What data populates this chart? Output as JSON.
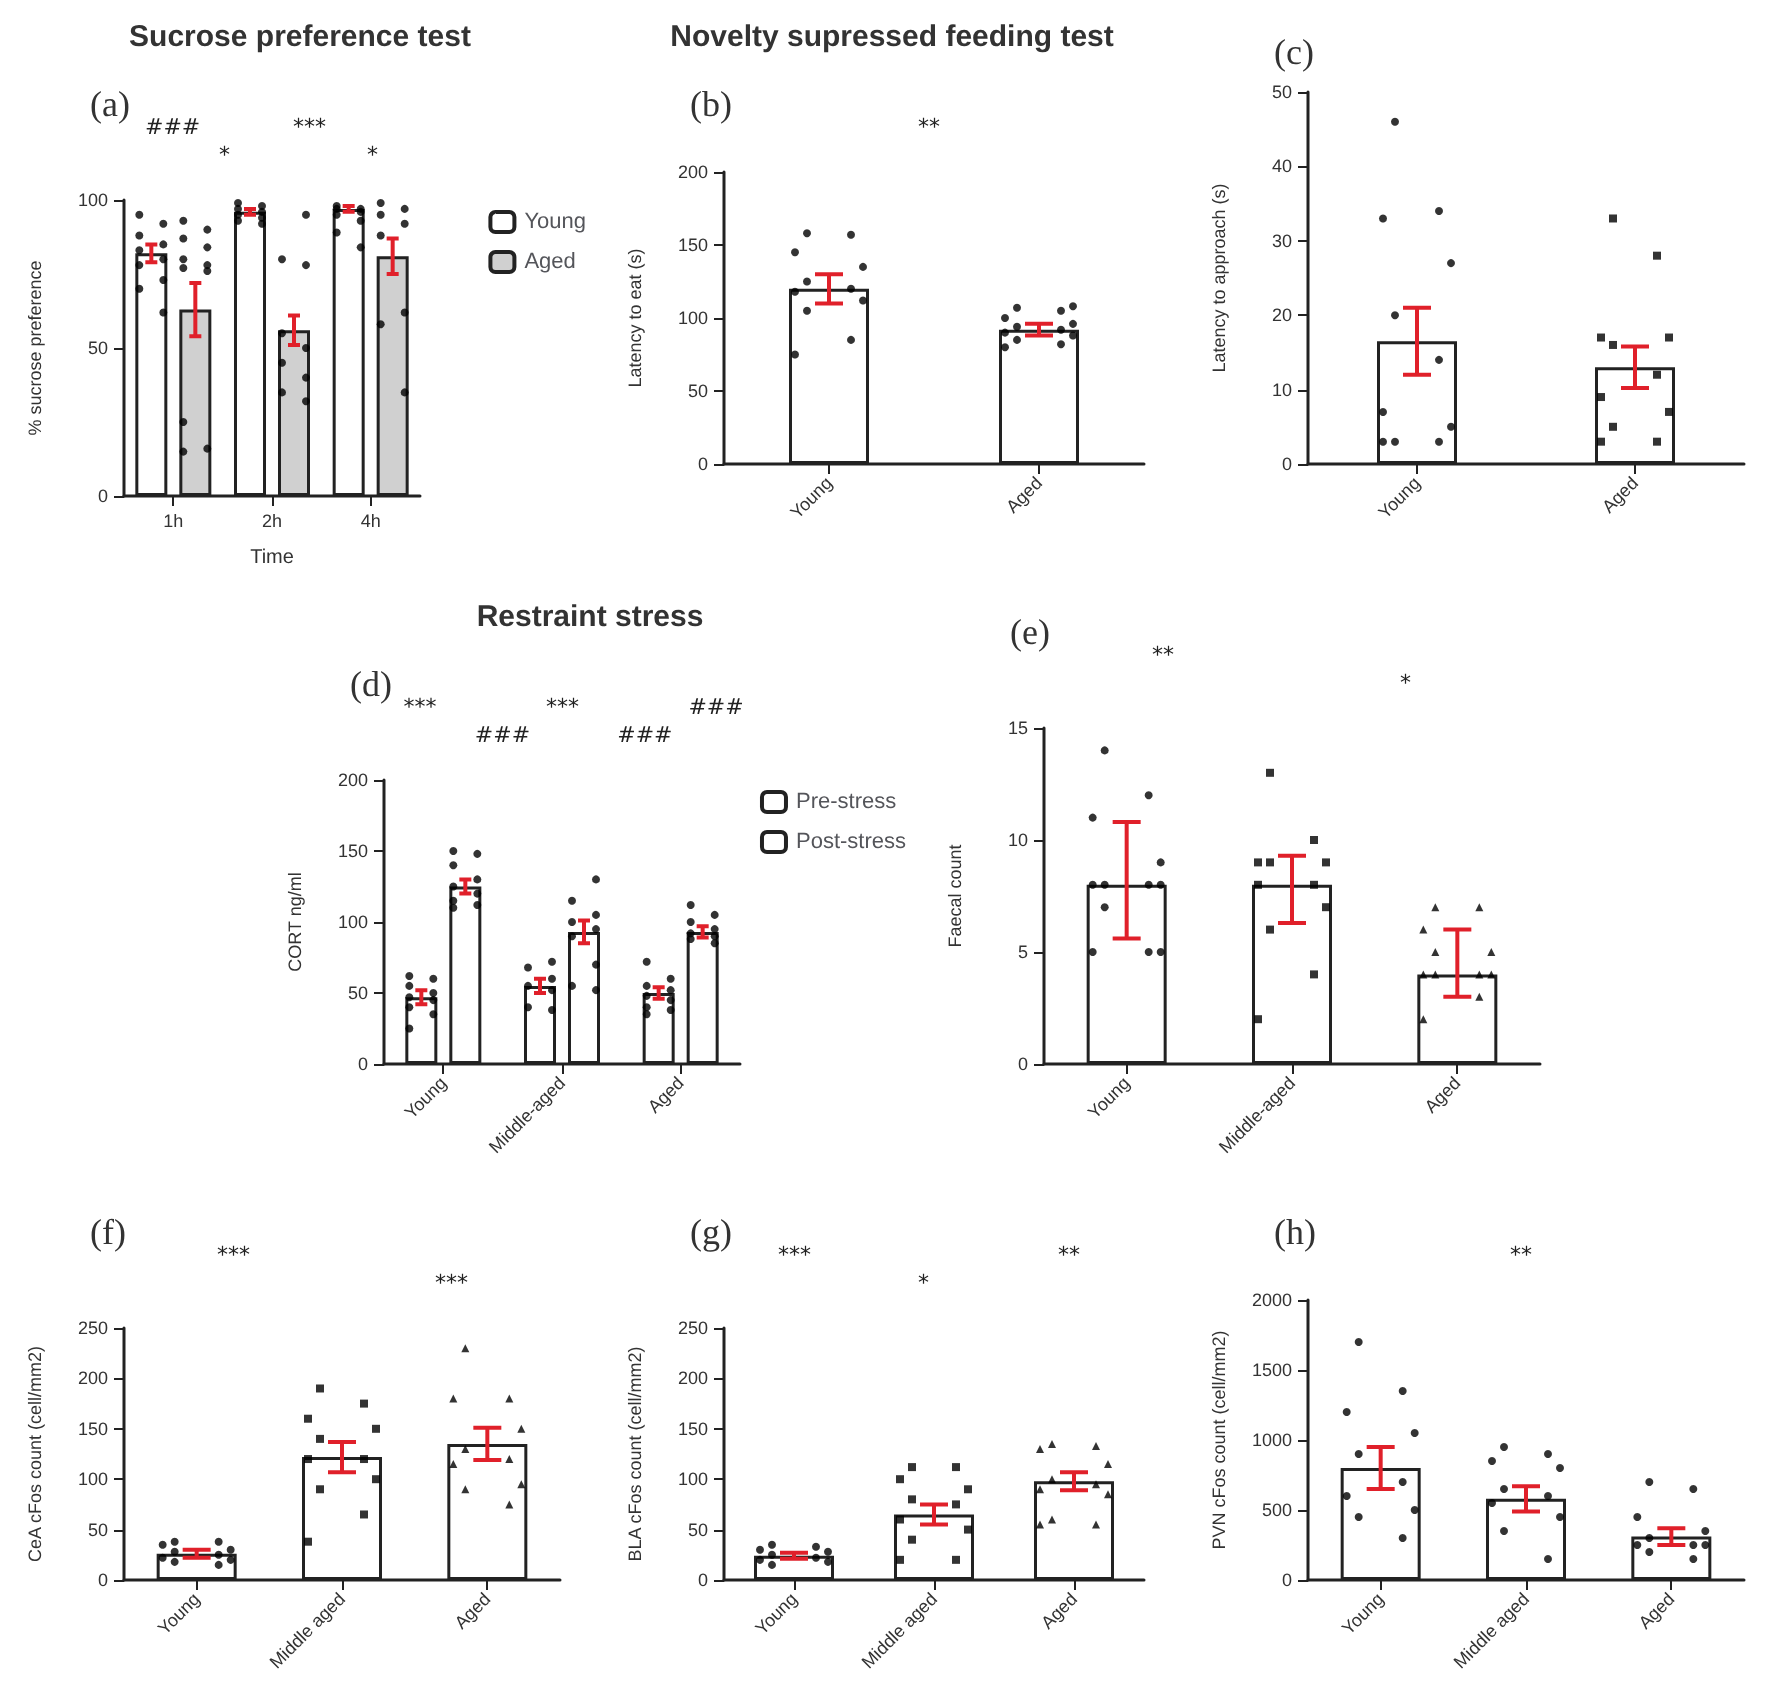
{
  "chart_data": [
    {
      "type": "bar",
      "title": "Sucrose preference test",
      "subtitle": "(a)",
      "xlabel": "Time",
      "ylabel": "% sucrose preference",
      "categories": [
        "1h",
        "2h",
        "4h"
      ],
      "ylim": [
        0,
        100
      ],
      "yticks": [
        0,
        50,
        100
      ],
      "legend": "right",
      "annotations": [
        "###",
        "*",
        "***",
        "*"
      ],
      "series": [
        {
          "name": "Young",
          "color": "#ffffff",
          "values": [
            82,
            96,
            97
          ],
          "errors": [
            3,
            1,
            1
          ]
        },
        {
          "name": "Aged",
          "color": "#d0d0d0",
          "values": [
            63,
            56,
            81
          ],
          "errors": [
            9,
            5,
            6
          ]
        },
        {
          "type": "scatter",
          "color": "#000000",
          "marker": "circle",
          "x": [
            "1h",
            "1h",
            "1h",
            "1h",
            "1h",
            "1h",
            "1h",
            "1h",
            "1h",
            "1h",
            "2h",
            "2h",
            "2h",
            "2h",
            "2h",
            "2h",
            "2h",
            "2h",
            "4h",
            "4h",
            "4h",
            "4h",
            "4h",
            "4h",
            "4h",
            "4h"
          ],
          "values": [
            95,
            92,
            88,
            85,
            83,
            80,
            78,
            73,
            70,
            62,
            99,
            98,
            97,
            96,
            95,
            94,
            93,
            92,
            98,
            97,
            97,
            96,
            95,
            93,
            89,
            84
          ]
        },
        {
          "type": "scatter",
          "color": "#000000",
          "marker": "circle",
          "x": [
            "1h",
            "1h",
            "1h",
            "1h",
            "1h",
            "1h",
            "1h",
            "1h",
            "1h",
            "1h",
            "1h",
            "2h",
            "2h",
            "2h",
            "2h",
            "2h",
            "2h",
            "2h",
            "2h",
            "2h",
            "4h",
            "4h",
            "4h",
            "4h",
            "4h",
            "4h",
            "4h",
            "4h"
          ],
          "values": [
            93,
            90,
            87,
            84,
            80,
            78,
            77,
            76,
            25,
            16,
            15,
            95,
            80,
            78,
            55,
            50,
            45,
            40,
            35,
            32,
            99,
            97,
            95,
            92,
            88,
            62,
            58,
            35
          ]
        }
      ]
    },
    {
      "type": "bar",
      "title": "Novelty supressed feeding test",
      "subtitle": "(b)",
      "ylabel": "Latency to eat (s)",
      "categories": [
        "Young",
        "Aged"
      ],
      "ylim": [
        0,
        200
      ],
      "yticks": [
        0,
        50,
        100,
        150,
        200
      ],
      "annotations": [
        "**"
      ],
      "series": [
        {
          "color": "#ffffff",
          "values": [
            120,
            92
          ],
          "errors": [
            10,
            4
          ]
        },
        {
          "type": "scatter",
          "color": "#000000",
          "marker": "circle",
          "x": [
            "Young",
            "Young",
            "Young",
            "Young",
            "Young",
            "Young",
            "Young",
            "Young",
            "Young",
            "Young",
            "Young",
            "Aged",
            "Aged",
            "Aged",
            "Aged",
            "Aged",
            "Aged",
            "Aged",
            "Aged",
            "Aged",
            "Aged",
            "Aged",
            "Aged"
          ],
          "values": [
            158,
            157,
            145,
            135,
            125,
            120,
            118,
            112,
            105,
            85,
            75,
            108,
            107,
            105,
            100,
            96,
            94,
            92,
            90,
            88,
            85,
            82,
            80
          ]
        }
      ]
    },
    {
      "type": "bar",
      "subtitle": "(c)",
      "ylabel": "Latency to approach (s)",
      "categories": [
        "Young",
        "Aged"
      ],
      "ylim": [
        0,
        50
      ],
      "yticks": [
        0,
        10,
        20,
        30,
        40,
        50
      ],
      "series": [
        {
          "color": "#ffffff",
          "values": [
            16.5,
            13
          ],
          "errors": [
            4.5,
            2.8
          ]
        },
        {
          "type": "scatter",
          "color": "#000000",
          "marker": "circle",
          "x": [
            "Young",
            "Young",
            "Young",
            "Young",
            "Young",
            "Young",
            "Young",
            "Young",
            "Young",
            "Young",
            "Young"
          ],
          "values": [
            46,
            34,
            33,
            27,
            20,
            14,
            7,
            5,
            3,
            3,
            3
          ]
        },
        {
          "type": "scatter",
          "color": "#000000",
          "marker": "square",
          "x": [
            "Aged",
            "Aged",
            "Aged",
            "Aged",
            "Aged",
            "Aged",
            "Aged",
            "Aged",
            "Aged",
            "Aged",
            "Aged"
          ],
          "values": [
            33,
            28,
            17,
            17,
            16,
            12,
            9,
            7,
            5,
            3,
            3
          ]
        }
      ]
    },
    {
      "type": "bar",
      "title": "Restraint stress",
      "subtitle": "(d)",
      "ylabel": "CORT ng/ml",
      "categories": [
        "Young",
        "Middle-aged",
        "Aged"
      ],
      "ylim": [
        0,
        200
      ],
      "yticks": [
        0,
        50,
        100,
        150,
        200
      ],
      "legend": "right",
      "annotations": [
        "***",
        "###",
        "***",
        "###",
        "###"
      ],
      "series": [
        {
          "name": "Pre-stress",
          "color": "#ffffff",
          "values": [
            47,
            55,
            50
          ],
          "errors": [
            5,
            5,
            4
          ]
        },
        {
          "name": "Post-stress",
          "color": "#ffffff",
          "values": [
            125,
            93,
            93
          ],
          "errors": [
            5,
            8,
            4
          ]
        },
        {
          "type": "scatter",
          "color": "#000000",
          "marker": "circle",
          "x": [
            "Young",
            "Young",
            "Young",
            "Young",
            "Young",
            "Young",
            "Young",
            "Young",
            "Young",
            "Middle-aged",
            "Middle-aged",
            "Middle-aged",
            "Middle-aged",
            "Middle-aged",
            "Middle-aged",
            "Middle-aged",
            "Aged",
            "Aged",
            "Aged",
            "Aged",
            "Aged",
            "Aged",
            "Aged",
            "Aged",
            "Aged"
          ],
          "values": [
            62,
            60,
            55,
            50,
            47,
            45,
            40,
            35,
            25,
            72,
            68,
            60,
            55,
            52,
            40,
            38,
            72,
            60,
            55,
            52,
            48,
            45,
            40,
            38,
            35
          ]
        },
        {
          "type": "scatter",
          "color": "#000000",
          "marker": "circle",
          "x": [
            "Young",
            "Young",
            "Young",
            "Young",
            "Young",
            "Young",
            "Young",
            "Young",
            "Young",
            "Middle-aged",
            "Middle-aged",
            "Middle-aged",
            "Middle-aged",
            "Middle-aged",
            "Middle-aged",
            "Middle-aged",
            "Middle-aged",
            "Middle-aged",
            "Aged",
            "Aged",
            "Aged",
            "Aged",
            "Aged",
            "Aged",
            "Aged",
            "Aged"
          ],
          "values": [
            150,
            148,
            140,
            130,
            125,
            120,
            115,
            112,
            110,
            130,
            115,
            105,
            100,
            95,
            90,
            70,
            55,
            52,
            112,
            105,
            100,
            95,
            92,
            90,
            88,
            85
          ]
        }
      ]
    },
    {
      "type": "bar",
      "subtitle": "(e)",
      "ylabel": "Faecal count",
      "categories": [
        "Young",
        "Middle-aged",
        "Aged"
      ],
      "ylim": [
        0,
        15
      ],
      "yticks": [
        0,
        5,
        10,
        15
      ],
      "annotations": [
        "**",
        "*"
      ],
      "series": [
        {
          "color": "#ffffff",
          "values": [
            8,
            8,
            4
          ],
          "errors": [
            [
              5.6,
              10.8
            ],
            [
              6.3,
              9.3
            ],
            [
              3,
              6
            ]
          ]
        },
        {
          "type": "scatter",
          "color": "#000000",
          "marker": "circle",
          "x": [
            "Young",
            "Young",
            "Young",
            "Young",
            "Young",
            "Young",
            "Young",
            "Young",
            "Young",
            "Young",
            "Young",
            "Young"
          ],
          "values": [
            14,
            12,
            11,
            9,
            8,
            8,
            8,
            8,
            7,
            5,
            5,
            5
          ]
        },
        {
          "type": "scatter",
          "color": "#000000",
          "marker": "square",
          "x": [
            "Middle-aged",
            "Middle-aged",
            "Middle-aged",
            "Middle-aged",
            "Middle-aged",
            "Middle-aged",
            "Middle-aged",
            "Middle-aged",
            "Middle-aged",
            "Middle-aged",
            "Middle-aged"
          ],
          "values": [
            13,
            10,
            9,
            9,
            9,
            8,
            8,
            7,
            6,
            4,
            2
          ]
        },
        {
          "type": "scatter",
          "color": "#000000",
          "marker": "triangle",
          "x": [
            "Aged",
            "Aged",
            "Aged",
            "Aged",
            "Aged",
            "Aged",
            "Aged",
            "Aged",
            "Aged",
            "Aged",
            "Aged"
          ],
          "values": [
            7,
            7,
            6,
            5,
            5,
            4,
            4,
            4,
            4,
            3,
            2
          ]
        }
      ]
    },
    {
      "type": "bar",
      "subtitle": "(f)",
      "ylabel": "CeA cFos count (cell/mm2)",
      "categories": [
        "Young",
        "Middle aged",
        "Aged"
      ],
      "ylim": [
        0,
        250
      ],
      "yticks": [
        0,
        50,
        100,
        150,
        200,
        250
      ],
      "annotations": [
        "***",
        "***"
      ],
      "series": [
        {
          "color": "#ffffff",
          "values": [
            26,
            122,
            135
          ],
          "errors": [
            4,
            15,
            16
          ]
        },
        {
          "type": "scatter",
          "color": "#000000",
          "marker": "circle",
          "x": [
            "Young",
            "Young",
            "Young",
            "Young",
            "Young",
            "Young",
            "Young",
            "Young",
            "Young",
            "Young"
          ],
          "values": [
            38,
            38,
            35,
            30,
            28,
            25,
            22,
            20,
            18,
            15
          ]
        },
        {
          "type": "scatter",
          "color": "#000000",
          "marker": "square",
          "x": [
            "Middle aged",
            "Middle aged",
            "Middle aged",
            "Middle aged",
            "Middle aged",
            "Middle aged",
            "Middle aged",
            "Middle aged",
            "Middle aged",
            "Middle aged",
            "Middle aged"
          ],
          "values": [
            190,
            175,
            160,
            150,
            140,
            120,
            120,
            100,
            90,
            65,
            38
          ]
        },
        {
          "type": "scatter",
          "color": "#000000",
          "marker": "triangle",
          "x": [
            "Aged",
            "Aged",
            "Aged",
            "Aged",
            "Aged",
            "Aged",
            "Aged",
            "Aged",
            "Aged",
            "Aged"
          ],
          "values": [
            230,
            180,
            180,
            150,
            130,
            120,
            115,
            95,
            90,
            75
          ]
        }
      ]
    },
    {
      "type": "bar",
      "subtitle": "(g)",
      "ylabel": "BLA cFos count (cell/mm2)",
      "categories": [
        "Young",
        "Middle aged",
        "Aged"
      ],
      "ylim": [
        0,
        250
      ],
      "yticks": [
        0,
        50,
        100,
        150,
        200,
        250
      ],
      "annotations": [
        "***",
        "*",
        "**"
      ],
      "series": [
        {
          "color": "#ffffff",
          "values": [
            24,
            65,
            98
          ],
          "errors": [
            3,
            10,
            9
          ]
        },
        {
          "type": "scatter",
          "color": "#000000",
          "marker": "circle",
          "x": [
            "Young",
            "Young",
            "Young",
            "Young",
            "Young",
            "Young",
            "Young",
            "Young",
            "Young"
          ],
          "values": [
            35,
            33,
            30,
            28,
            25,
            22,
            20,
            18,
            15
          ]
        },
        {
          "type": "scatter",
          "color": "#000000",
          "marker": "square",
          "x": [
            "Middle aged",
            "Middle aged",
            "Middle aged",
            "Middle aged",
            "Middle aged",
            "Middle aged",
            "Middle aged",
            "Middle aged",
            "Middle aged",
            "Middle aged",
            "Middle aged"
          ],
          "values": [
            112,
            112,
            100,
            90,
            80,
            75,
            60,
            50,
            40,
            20,
            20
          ]
        },
        {
          "type": "scatter",
          "color": "#000000",
          "marker": "triangle",
          "x": [
            "Aged",
            "Aged",
            "Aged",
            "Aged",
            "Aged",
            "Aged",
            "Aged",
            "Aged",
            "Aged",
            "Aged",
            "Aged"
          ],
          "values": [
            135,
            133,
            130,
            115,
            100,
            95,
            90,
            85,
            60,
            55,
            55
          ]
        }
      ]
    },
    {
      "type": "bar",
      "subtitle": "(h)",
      "ylabel": "PVN cFos count (cell/mm2)",
      "categories": [
        "Young",
        "Middle aged",
        "Aged"
      ],
      "ylim": [
        0,
        2000
      ],
      "yticks": [
        0,
        500,
        1000,
        1500,
        2000
      ],
      "annotations": [
        "**"
      ],
      "series": [
        {
          "color": "#ffffff",
          "values": [
            800,
            580,
            310
          ],
          "errors": [
            150,
            90,
            60
          ]
        },
        {
          "type": "scatter",
          "color": "#000000",
          "marker": "circle",
          "x": [
            "Young",
            "Young",
            "Young",
            "Young",
            "Young",
            "Young",
            "Young",
            "Young",
            "Young",
            "Young"
          ],
          "values": [
            1700,
            1350,
            1200,
            1050,
            900,
            700,
            600,
            500,
            450,
            300
          ]
        },
        {
          "type": "scatter",
          "color": "#000000",
          "marker": "circle",
          "x": [
            "Middle aged",
            "Middle aged",
            "Middle aged",
            "Middle aged",
            "Middle aged",
            "Middle aged",
            "Middle aged",
            "Middle aged",
            "Middle aged",
            "Middle aged"
          ],
          "values": [
            950,
            900,
            850,
            800,
            650,
            600,
            550,
            450,
            350,
            150
          ]
        },
        {
          "type": "scatter",
          "color": "#000000",
          "marker": "circle",
          "x": [
            "Aged",
            "Aged",
            "Aged",
            "Aged",
            "Aged",
            "Aged",
            "Aged",
            "Aged",
            "Aged",
            "Aged"
          ],
          "values": [
            700,
            650,
            450,
            350,
            300,
            250,
            250,
            250,
            200,
            150
          ]
        }
      ]
    }
  ]
}
